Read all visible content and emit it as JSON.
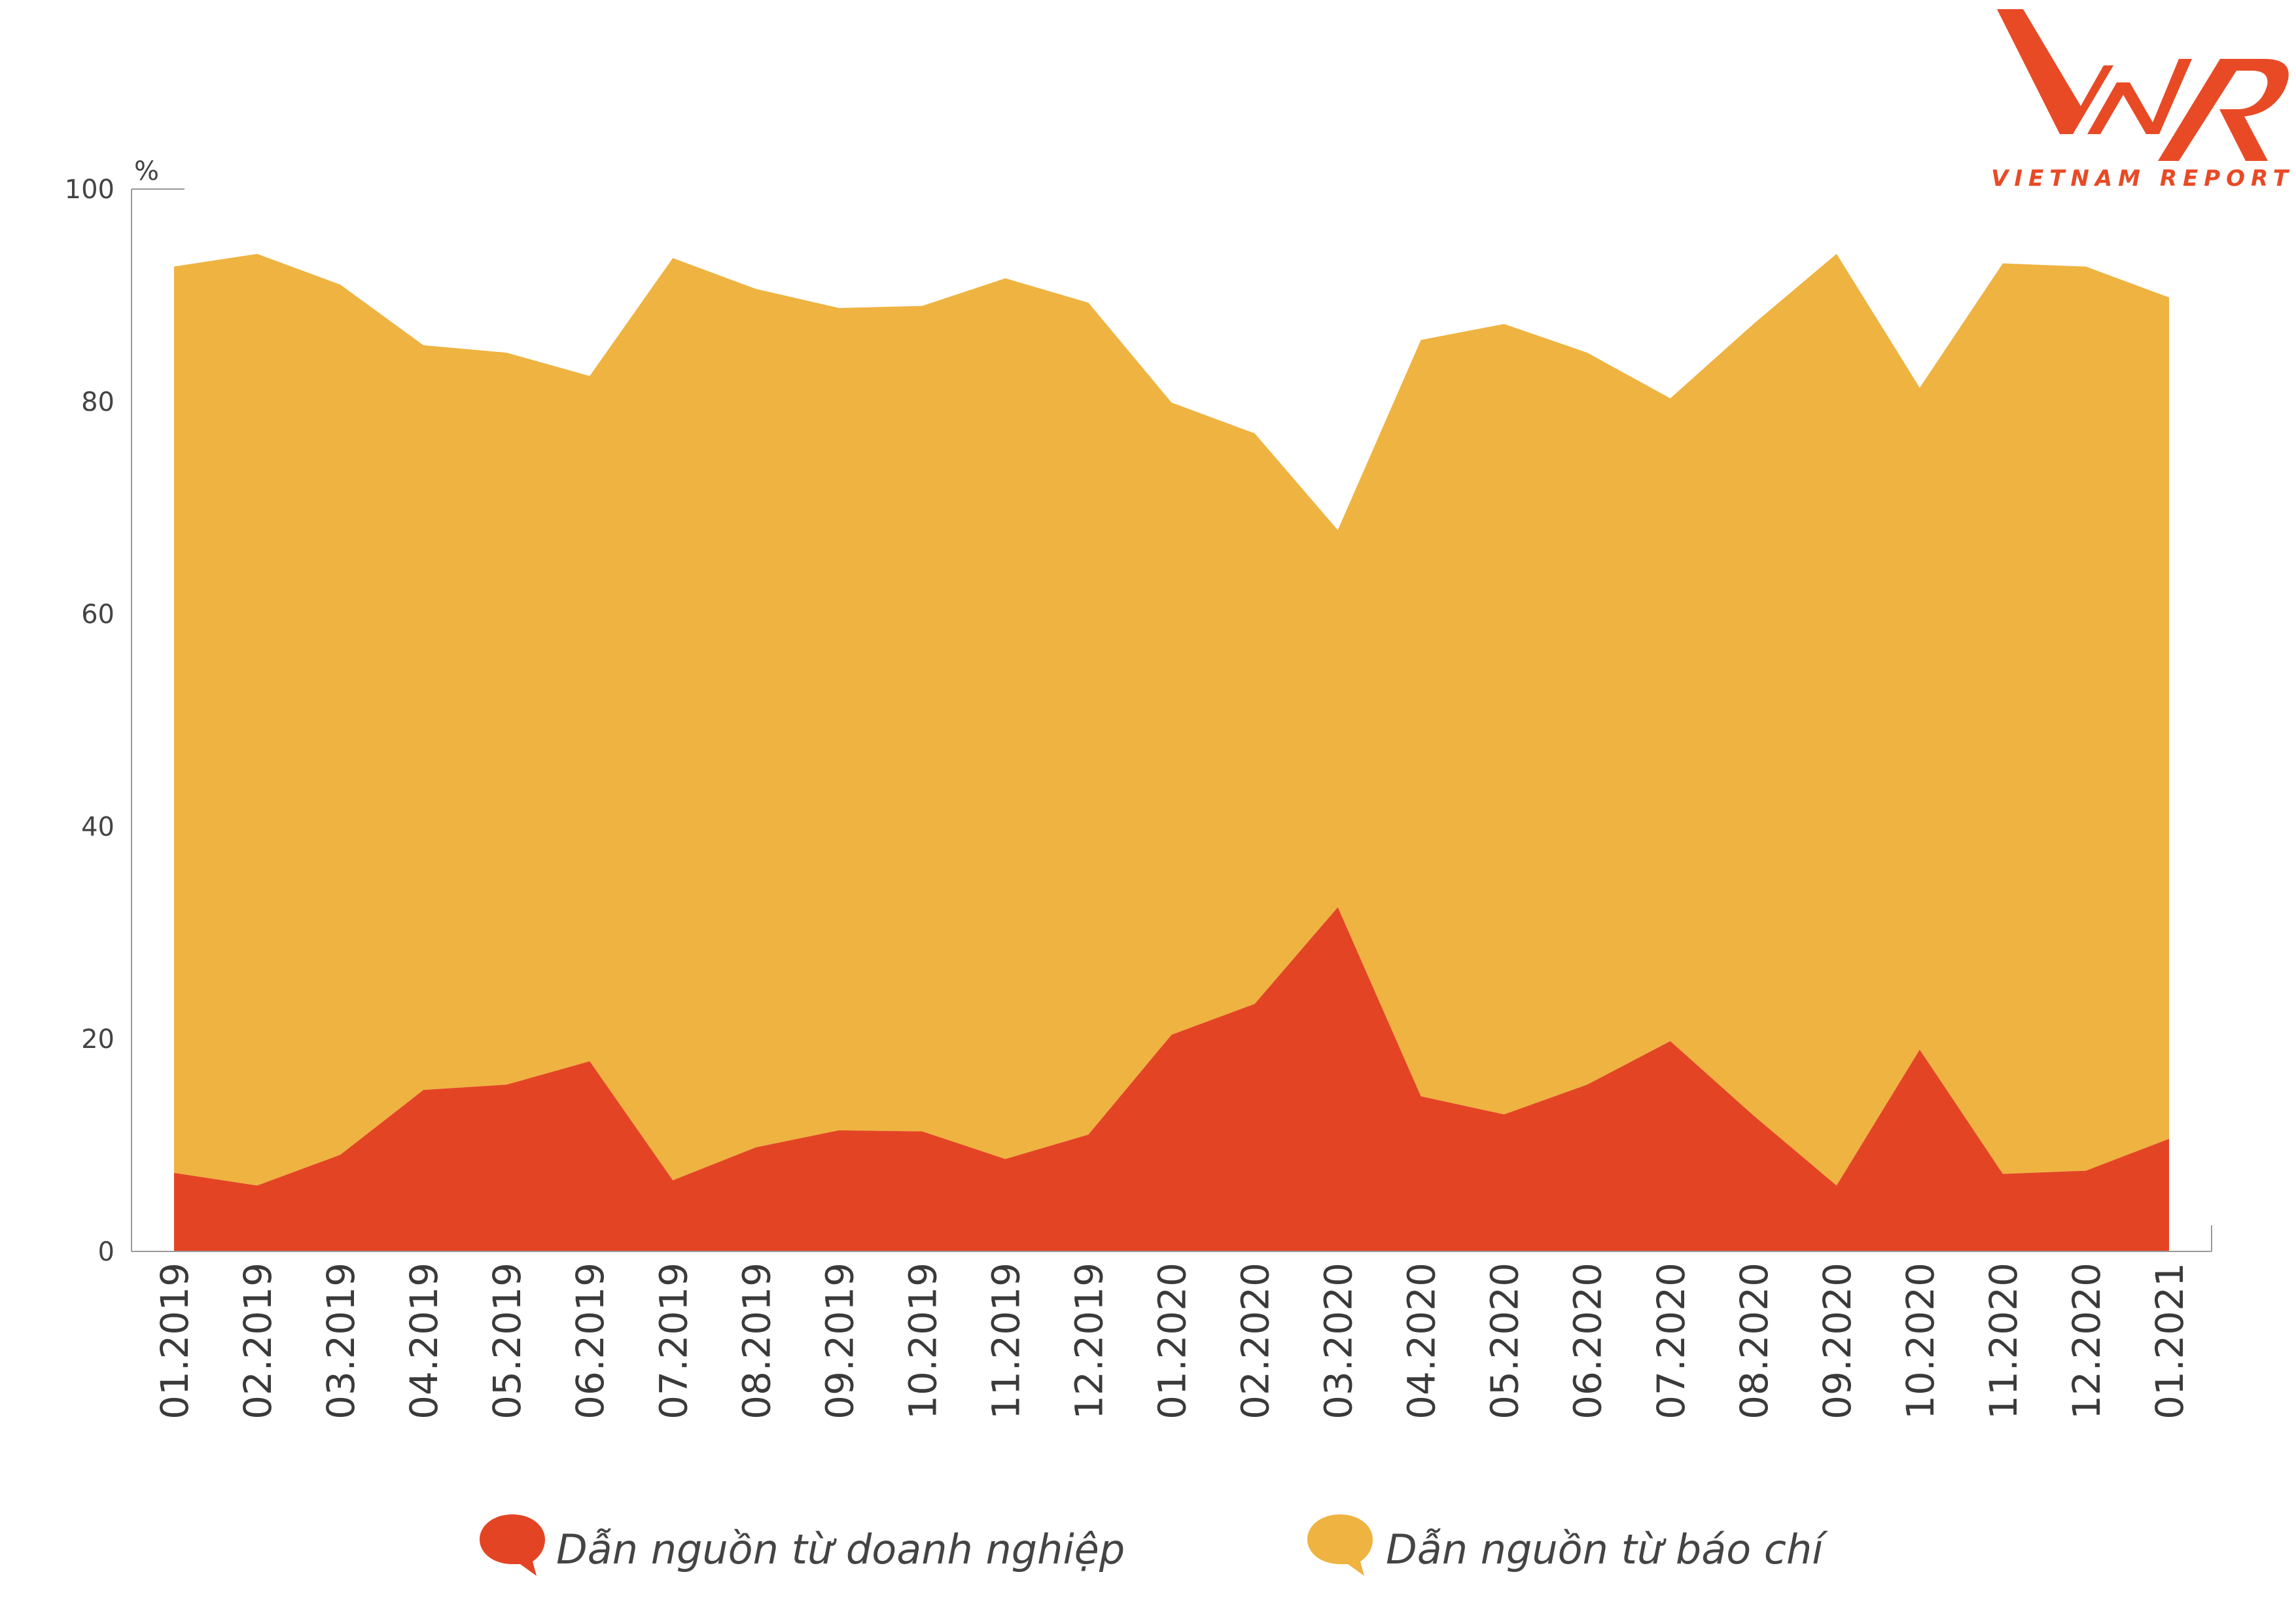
{
  "chart_data": {
    "type": "area",
    "stacked": true,
    "title": "",
    "xlabel": "",
    "ylabel": "%",
    "ylim": [
      0,
      100
    ],
    "yticks": [
      "0",
      "20",
      "40",
      "60",
      "80",
      "100"
    ],
    "grid": false,
    "legend_position": "bottom",
    "categories": [
      "01.2019",
      "02.2019",
      "03.2019",
      "04.2019",
      "05.2019",
      "06.2019",
      "07.2019",
      "08.2019",
      "09.2019",
      "10.2019",
      "11.2019",
      "12.2019",
      "01.2020",
      "02.2020",
      "03.2020",
      "04.2020",
      "05.2020",
      "06.2020",
      "07.2020",
      "08.2020",
      "09.2020",
      "10.2020",
      "11.2020",
      "12.2020",
      "01.2021"
    ],
    "series": [
      {
        "name": "Dẫn nguồn từ doanh nghiệp",
        "color": "#e34524",
        "values": [
          7.4,
          6.2,
          9.1,
          15.2,
          15.7,
          17.9,
          6.7,
          9.8,
          11.4,
          11.3,
          8.7,
          11.0,
          20.4,
          23.3,
          32.4,
          14.6,
          12.9,
          15.7,
          19.8,
          12.8,
          6.2,
          19.0,
          7.3,
          7.6,
          10.6
        ]
      },
      {
        "name": "Dẫn nguồn từ báo chí",
        "color": "#efb341",
        "values": [
          85.3,
          87.7,
          81.9,
          70.1,
          68.9,
          64.5,
          86.8,
          80.8,
          77.4,
          77.7,
          82.9,
          78.3,
          59.5,
          53.7,
          35.5,
          71.2,
          74.4,
          68.9,
          60.5,
          74.5,
          87.7,
          62.3,
          85.7,
          85.1,
          79.2
        ]
      }
    ]
  },
  "logo": {
    "mark": "VNR",
    "text": "VIETNAM REPORT",
    "color": "#e84a26"
  }
}
